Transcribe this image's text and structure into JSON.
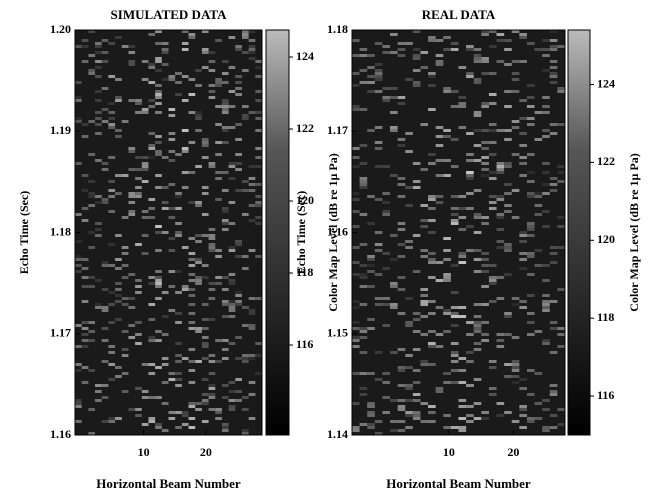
{
  "chart_data": [
    {
      "type": "heatmap",
      "title": "SIMULATED DATA",
      "x_label": "Horizontal Beam Number",
      "y_label": "Echo Time (Sec)",
      "xlim": [
        -1,
        29
      ],
      "xticks": [
        10,
        20
      ],
      "ylim": [
        1.16,
        1.2
      ],
      "yticks": [
        {
          "value": 1.16,
          "label": "1.16"
        },
        {
          "value": 1.17,
          "label": "1.17"
        },
        {
          "value": 1.18,
          "label": "1.18"
        },
        {
          "value": 1.19,
          "label": "1.19"
        },
        {
          "value": 1.2,
          "label": "1.20"
        }
      ],
      "colorbar_label": "Color Map Level (dB re 1µ Pa)",
      "clim": [
        113.5,
        124.75
      ],
      "cticks": [
        116,
        118,
        120,
        122,
        124
      ]
    },
    {
      "type": "heatmap",
      "title": "REAL DATA",
      "x_label": "Horizontal Beam Number",
      "y_label": "Echo Time (Sec)",
      "xlim": [
        -5,
        28
      ],
      "xticks": [
        10,
        20
      ],
      "ylim": [
        1.14,
        1.18
      ],
      "yticks": [
        {
          "value": 1.14,
          "label": "1.14"
        },
        {
          "value": 1.15,
          "label": "1.15"
        },
        {
          "value": 1.16,
          "label": "1.16"
        },
        {
          "value": 1.17,
          "label": "1.17"
        },
        {
          "value": 1.18,
          "label": "1.18"
        }
      ],
      "colorbar_label": "Color Map Level (dB re 1µ Pa)",
      "clim": [
        115,
        125.4
      ],
      "cticks": [
        116,
        118,
        120,
        122,
        124
      ]
    }
  ]
}
